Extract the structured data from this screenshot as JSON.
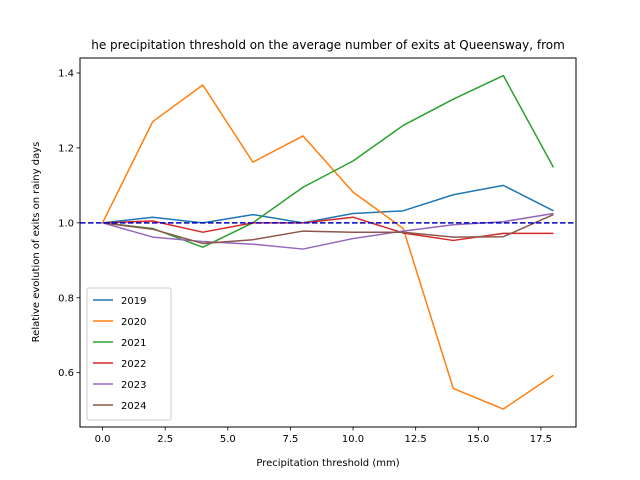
{
  "chart_data": {
    "type": "line",
    "title": "he precipitation threshold on the average number of exits at Queensway, from",
    "xlabel": "Precipitation threshold (mm)",
    "ylabel": "Relative evolution of exits on rainy days",
    "xlim": [
      -0.9,
      18.9
    ],
    "ylim": [
      0.455,
      1.44
    ],
    "xticks": [
      0.0,
      2.5,
      5.0,
      7.5,
      10.0,
      12.5,
      15.0,
      17.5
    ],
    "xtick_labels": [
      "0.0",
      "2.5",
      "5.0",
      "7.5",
      "10.0",
      "12.5",
      "15.0",
      "17.5"
    ],
    "yticks": [
      0.6,
      0.8,
      1.0,
      1.2,
      1.4
    ],
    "ytick_labels": [
      "0.6",
      "0.8",
      "1.0",
      "1.2",
      "1.4"
    ],
    "grid": false,
    "legend_position": "lower-left",
    "reference_line": {
      "y": 1.0,
      "color": "#0000cc",
      "style": "dashed"
    },
    "x": [
      0,
      2,
      4,
      6,
      8,
      10,
      12,
      14,
      16,
      18
    ],
    "series": [
      {
        "name": "2019",
        "color": "#1f77b4",
        "values": [
          1.0,
          1.015,
          1.0,
          1.022,
          1.0,
          1.025,
          1.032,
          1.075,
          1.1,
          1.032
        ]
      },
      {
        "name": "2020",
        "color": "#ff7f0e",
        "values": [
          1.0,
          1.27,
          1.368,
          1.162,
          1.232,
          1.082,
          0.985,
          0.558,
          0.503,
          0.593
        ]
      },
      {
        "name": "2021",
        "color": "#2ca02c",
        "values": [
          1.0,
          0.985,
          0.935,
          1.0,
          1.095,
          1.165,
          1.26,
          1.33,
          1.393,
          1.148
        ]
      },
      {
        "name": "2022",
        "color": "#d62728",
        "values": [
          1.0,
          1.005,
          0.975,
          1.0,
          1.0,
          1.015,
          0.973,
          0.953,
          0.972,
          0.972
        ]
      },
      {
        "name": "2023",
        "color": "#9467bd",
        "values": [
          1.0,
          0.962,
          0.95,
          0.943,
          0.93,
          0.958,
          0.978,
          0.995,
          1.003,
          1.025
        ]
      },
      {
        "name": "2024",
        "color": "#8c564b",
        "values": [
          1.0,
          0.983,
          0.945,
          0.955,
          0.978,
          0.975,
          0.975,
          0.962,
          0.963,
          1.022
        ]
      }
    ]
  }
}
